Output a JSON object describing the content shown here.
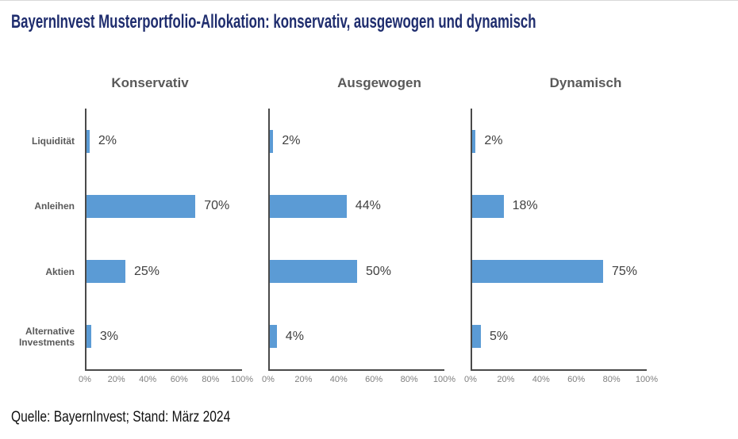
{
  "title": "BayernInvest Musterportfolio-Allokation: konservativ, ausgewogen und dynamisch",
  "source": "Quelle: BayernInvest; Stand: März 2024",
  "colors": {
    "title": "#1f2d6e",
    "bar": "#5b9bd5",
    "axis": "#4a4a4a",
    "tick": "#7f7f7f",
    "category": "#595959",
    "subtitle": "#595959",
    "value": "#404040"
  },
  "chart_data": [
    {
      "type": "bar",
      "orientation": "horizontal",
      "title": "Konservativ",
      "categories": [
        "Liquidität",
        "Anleihen",
        "Aktien",
        "Alternative Investments"
      ],
      "values": [
        2,
        70,
        25,
        3
      ],
      "value_labels": [
        "2%",
        "70%",
        "25%",
        "3%"
      ],
      "x_ticks": [
        "0%",
        "20%",
        "40%",
        "60%",
        "80%",
        "100%"
      ],
      "xlim": [
        0,
        100
      ],
      "grid": false,
      "legend": false
    },
    {
      "type": "bar",
      "orientation": "horizontal",
      "title": "Ausgewogen",
      "categories": [
        "Liquidität",
        "Anleihen",
        "Aktien",
        "Alternative Investments"
      ],
      "values": [
        2,
        44,
        50,
        4
      ],
      "value_labels": [
        "2%",
        "44%",
        "50%",
        "4%"
      ],
      "x_ticks": [
        "0%",
        "20%",
        "40%",
        "60%",
        "80%",
        "100%"
      ],
      "xlim": [
        0,
        100
      ],
      "grid": false,
      "legend": false
    },
    {
      "type": "bar",
      "orientation": "horizontal",
      "title": "Dynamisch",
      "categories": [
        "Liquidität",
        "Anleihen",
        "Aktien",
        "Alternative Investments"
      ],
      "values": [
        2,
        18,
        75,
        5
      ],
      "value_labels": [
        "2%",
        "18%",
        "75%",
        "5%"
      ],
      "x_ticks": [
        "0%",
        "20%",
        "40%",
        "60%",
        "80%",
        "100%"
      ],
      "xlim": [
        0,
        100
      ],
      "grid": false,
      "legend": false
    }
  ]
}
